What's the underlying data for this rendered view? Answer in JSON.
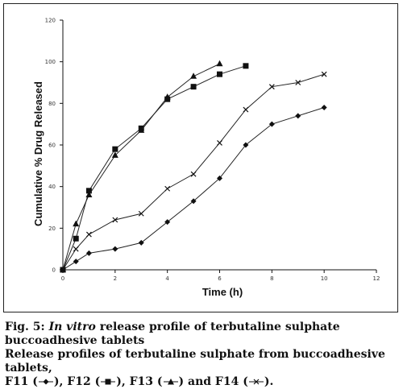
{
  "chart_data": {
    "type": "line",
    "xlabel": "Time (h)",
    "ylabel": "Cumulative % Drug Released",
    "xlim": [
      0,
      12
    ],
    "ylim": [
      0,
      120
    ],
    "xticks": [
      "0",
      "2",
      "4",
      "6",
      "8",
      "10",
      "12"
    ],
    "yticks": [
      "0",
      "20",
      "40",
      "60",
      "80",
      "100",
      "120"
    ],
    "grid": false,
    "legend": "none",
    "series": [
      {
        "name": "F11",
        "marker": "diamond",
        "x": [
          0,
          0.5,
          1,
          2,
          3,
          4,
          5,
          6,
          7,
          8,
          9,
          10
        ],
        "y": [
          0,
          4,
          8,
          10,
          13,
          23,
          33,
          44,
          60,
          70,
          74,
          78
        ]
      },
      {
        "name": "F12",
        "marker": "square",
        "x": [
          0,
          0.5,
          1,
          2,
          3,
          4,
          5,
          6,
          7
        ],
        "y": [
          0,
          15,
          38,
          58,
          68,
          82,
          88,
          94,
          98
        ]
      },
      {
        "name": "F13",
        "marker": "triangle",
        "x": [
          0,
          0.5,
          1,
          2,
          3,
          4,
          5,
          6
        ],
        "y": [
          0,
          22,
          36,
          55,
          67,
          83,
          93,
          99
        ]
      },
      {
        "name": "F14",
        "marker": "x",
        "x": [
          0,
          0.5,
          1,
          2,
          3,
          4,
          5,
          6,
          7,
          8,
          9,
          10
        ],
        "y": [
          0,
          10,
          17,
          24,
          27,
          39,
          46,
          61,
          77,
          88,
          90,
          94
        ]
      }
    ]
  },
  "caption": {
    "fig_label": "Fig. 5: ",
    "fig_italic": "In vitro",
    "fig_rest": " release profile of terbutaline sulphate buccoadhesive tablets",
    "desc_line1": "Release profiles of terbutaline sulphate from buccoadhesive tablets,",
    "desc_line2_parts": [
      "F11 (",
      "), F12 (",
      "), F13 (",
      ") and F14 (",
      ")."
    ]
  }
}
